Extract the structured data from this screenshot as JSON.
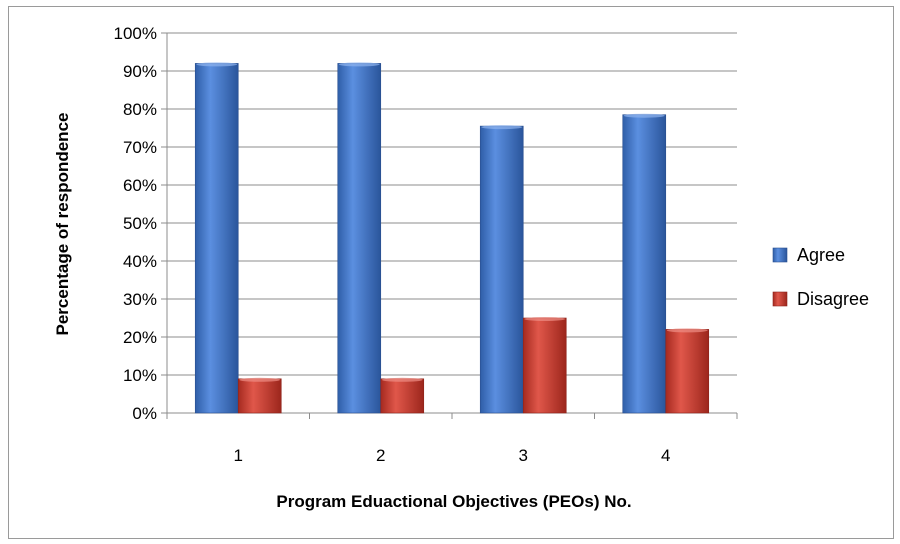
{
  "chart_data": {
    "type": "bar",
    "categories": [
      "1",
      "2",
      "3",
      "4"
    ],
    "series": [
      {
        "name": "Agree",
        "values": [
          92,
          92,
          75.5,
          78.5
        ],
        "color": "#3a6fc4"
      },
      {
        "name": "Disagree",
        "values": [
          9,
          9,
          25,
          22
        ],
        "color": "#c0392b"
      }
    ],
    "xlabel": "Program Eduactional  Objectives (PEOs) No.",
    "ylabel": "Percentage of respondence",
    "ylim": [
      0,
      100
    ],
    "yticks": [
      "0%",
      "10%",
      "20%",
      "30%",
      "40%",
      "50%",
      "60%",
      "70%",
      "80%",
      "90%",
      "100%"
    ],
    "grid": true,
    "legend_position": "right"
  }
}
